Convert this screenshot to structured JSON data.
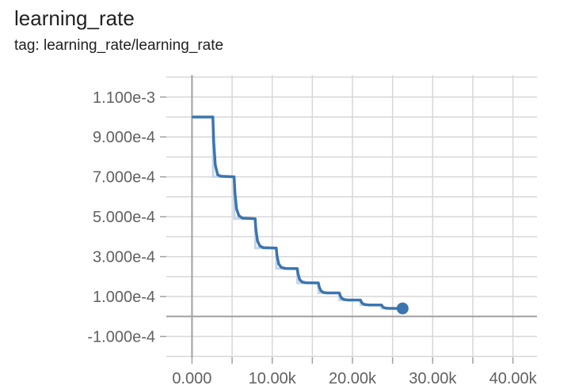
{
  "card": {
    "title": "learning_rate",
    "tag": "tag: learning_rate/learning_rate"
  },
  "chart_data": {
    "type": "line",
    "title": "learning_rate",
    "xlabel": "",
    "ylabel": "",
    "x_ticks": [
      {
        "value": 0,
        "label": "0.000"
      },
      {
        "value": 10000,
        "label": "10.00k"
      },
      {
        "value": 20000,
        "label": "20.00k"
      },
      {
        "value": 30000,
        "label": "30.00k"
      },
      {
        "value": 40000,
        "label": "40.00k"
      }
    ],
    "y_ticks": [
      {
        "value": 0.0011,
        "label": "1.100e-3"
      },
      {
        "value": 0.0009,
        "label": "9.000e-4"
      },
      {
        "value": 0.0007,
        "label": "7.000e-4"
      },
      {
        "value": 0.0005,
        "label": "5.000e-4"
      },
      {
        "value": 0.0003,
        "label": "3.000e-4"
      },
      {
        "value": 0.0001,
        "label": "1.000e-4"
      },
      {
        "value": -0.0001,
        "label": "-1.000e-4"
      }
    ],
    "xlim": [
      -3200,
      43000
    ],
    "ylim": [
      -0.000205,
      0.00121
    ],
    "grid": true,
    "series": [
      {
        "color": "#3b75af",
        "raw_color": "#c5d7ea",
        "raw_points": [
          [
            0,
            0.001
          ],
          [
            2620,
            0.001
          ],
          [
            2640,
            0.0007
          ],
          [
            5250,
            0.0007
          ],
          [
            5270,
            0.00049
          ],
          [
            7870,
            0.00049
          ],
          [
            7890,
            0.000343
          ],
          [
            10500,
            0.000343
          ],
          [
            10520,
            0.00024
          ],
          [
            13120,
            0.00024
          ],
          [
            13140,
            0.000168
          ],
          [
            15750,
            0.000168
          ],
          [
            15770,
            0.000118
          ],
          [
            18370,
            0.000118
          ],
          [
            18390,
            8.24e-05
          ],
          [
            21000,
            8.24e-05
          ],
          [
            21020,
            5.77e-05
          ],
          [
            23620,
            5.77e-05
          ],
          [
            23640,
            4.04e-05
          ],
          [
            26250,
            4.04e-05
          ]
        ],
        "points": [
          [
            0,
            0.001
          ],
          [
            2600,
            0.001
          ],
          [
            2700,
            0.00088
          ],
          [
            2900,
            0.00076
          ],
          [
            3200,
            0.00071
          ],
          [
            3600,
            0.000703
          ],
          [
            5250,
            0.0007
          ],
          [
            5350,
            0.00062
          ],
          [
            5550,
            0.00054
          ],
          [
            5850,
            0.000505
          ],
          [
            6300,
            0.000493
          ],
          [
            7870,
            0.00049
          ],
          [
            7970,
            0.000434
          ],
          [
            8170,
            0.000378
          ],
          [
            8470,
            0.000353
          ],
          [
            8900,
            0.000345
          ],
          [
            10500,
            0.000343
          ],
          [
            10600,
            0.000304
          ],
          [
            10800,
            0.000264
          ],
          [
            11100,
            0.000247
          ],
          [
            11600,
            0.000241
          ],
          [
            13120,
            0.00024
          ],
          [
            13220,
            0.000213
          ],
          [
            13420,
            0.000185
          ],
          [
            13720,
            0.000173
          ],
          [
            14200,
            0.000169
          ],
          [
            15750,
            0.000168
          ],
          [
            15850,
            0.000149
          ],
          [
            16050,
            0.00013
          ],
          [
            16350,
            0.000121
          ],
          [
            16800,
            0.000118
          ],
          [
            18370,
            0.000118
          ],
          [
            18470,
            0.000104
          ],
          [
            18670,
            9.09e-05
          ],
          [
            18970,
            8.49e-05
          ],
          [
            19400,
            8.26e-05
          ],
          [
            21000,
            8.24e-05
          ],
          [
            21100,
            7.3e-05
          ],
          [
            21300,
            6.36e-05
          ],
          [
            21600,
            5.94e-05
          ],
          [
            22100,
            5.78e-05
          ],
          [
            23620,
            5.77e-05
          ],
          [
            23720,
            5.11e-05
          ],
          [
            23920,
            4.45e-05
          ],
          [
            24220,
            4.16e-05
          ],
          [
            24700,
            4.05e-05
          ],
          [
            26250,
            4.04e-05
          ]
        ]
      }
    ]
  }
}
